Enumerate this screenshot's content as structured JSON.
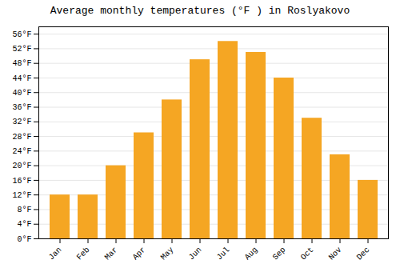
{
  "chart_data": {
    "type": "bar",
    "title": "Average monthly temperatures (°F ) in Roslyakovo",
    "categories": [
      "Jan",
      "Feb",
      "Mar",
      "Apr",
      "May",
      "Jun",
      "Jul",
      "Aug",
      "Sep",
      "Oct",
      "Nov",
      "Dec"
    ],
    "values": [
      12,
      12,
      20,
      29,
      38,
      49,
      54,
      51,
      44,
      33,
      23,
      16
    ],
    "color": "#F5A623",
    "ylim": [
      0,
      58
    ],
    "yticks": [
      {
        "value": 0,
        "label": "0°F"
      },
      {
        "value": 4,
        "label": "4°F"
      },
      {
        "value": 8,
        "label": "8°F"
      },
      {
        "value": 12,
        "label": "12°F"
      },
      {
        "value": 16,
        "label": "16°F"
      },
      {
        "value": 20,
        "label": "20°F"
      },
      {
        "value": 24,
        "label": "24°F"
      },
      {
        "value": 28,
        "label": "28°F"
      },
      {
        "value": 32,
        "label": "32°F"
      },
      {
        "value": 36,
        "label": "36°F"
      },
      {
        "value": 40,
        "label": "40°F"
      },
      {
        "value": 44,
        "label": "44°F"
      },
      {
        "value": 48,
        "label": "48°F"
      },
      {
        "value": 52,
        "label": "52°F"
      },
      {
        "value": 56,
        "label": "56°F"
      }
    ],
    "grid": true
  }
}
